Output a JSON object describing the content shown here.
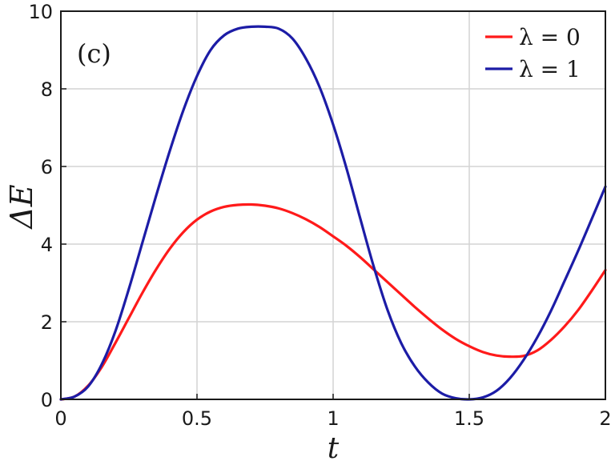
{
  "chart_data": {
    "type": "line",
    "annotation": "(c)",
    "xlabel": "t",
    "ylabel": "ΔE",
    "xlim": [
      0,
      2
    ],
    "ylim": [
      0,
      10
    ],
    "xticks": [
      "0",
      "0.5",
      "1",
      "1.5",
      "2"
    ],
    "yticks": [
      "0",
      "2",
      "4",
      "6",
      "8",
      "10"
    ],
    "grid": true,
    "legend_position": "top-right",
    "series": [
      {
        "name": "λ = 0",
        "color": "#ff1a1a",
        "x": [
          0,
          0.05,
          0.1,
          0.15,
          0.2,
          0.25,
          0.3,
          0.35,
          0.4,
          0.45,
          0.5,
          0.55,
          0.6,
          0.65,
          0.7,
          0.75,
          0.8,
          0.85,
          0.9,
          0.95,
          1.0,
          1.05,
          1.1,
          1.15,
          1.2,
          1.25,
          1.3,
          1.35,
          1.4,
          1.45,
          1.5,
          1.55,
          1.6,
          1.65,
          1.7,
          1.75,
          1.8,
          1.85,
          1.9,
          1.95,
          2.0
        ],
        "y": [
          0,
          0.07,
          0.35,
          0.83,
          1.45,
          2.1,
          2.75,
          3.35,
          3.88,
          4.31,
          4.63,
          4.84,
          4.96,
          5.01,
          5.02,
          4.99,
          4.92,
          4.8,
          4.64,
          4.44,
          4.2,
          3.95,
          3.66,
          3.34,
          3.02,
          2.7,
          2.38,
          2.08,
          1.8,
          1.56,
          1.37,
          1.22,
          1.13,
          1.1,
          1.12,
          1.26,
          1.53,
          1.88,
          2.3,
          2.8,
          3.33
        ]
      },
      {
        "name": "λ = 1",
        "color": "#1c1ca6",
        "x": [
          0,
          0.05,
          0.1,
          0.15,
          0.2,
          0.25,
          0.3,
          0.35,
          0.4,
          0.45,
          0.5,
          0.55,
          0.6,
          0.65,
          0.7,
          0.75,
          0.8,
          0.85,
          0.9,
          0.95,
          1.0,
          1.05,
          1.1,
          1.15,
          1.2,
          1.25,
          1.3,
          1.35,
          1.4,
          1.45,
          1.5,
          1.55,
          1.6,
          1.65,
          1.7,
          1.75,
          1.8,
          1.85,
          1.9,
          1.95,
          2.0
        ],
        "y": [
          0,
          0.07,
          0.33,
          0.9,
          1.75,
          2.85,
          4.05,
          5.25,
          6.4,
          7.45,
          8.33,
          9.0,
          9.38,
          9.55,
          9.6,
          9.6,
          9.55,
          9.3,
          8.78,
          8.05,
          7.08,
          5.93,
          4.65,
          3.4,
          2.3,
          1.45,
          0.85,
          0.43,
          0.15,
          0.03,
          0.0,
          0.05,
          0.22,
          0.55,
          1.02,
          1.6,
          2.28,
          3.05,
          3.83,
          4.65,
          5.48
        ]
      }
    ]
  }
}
